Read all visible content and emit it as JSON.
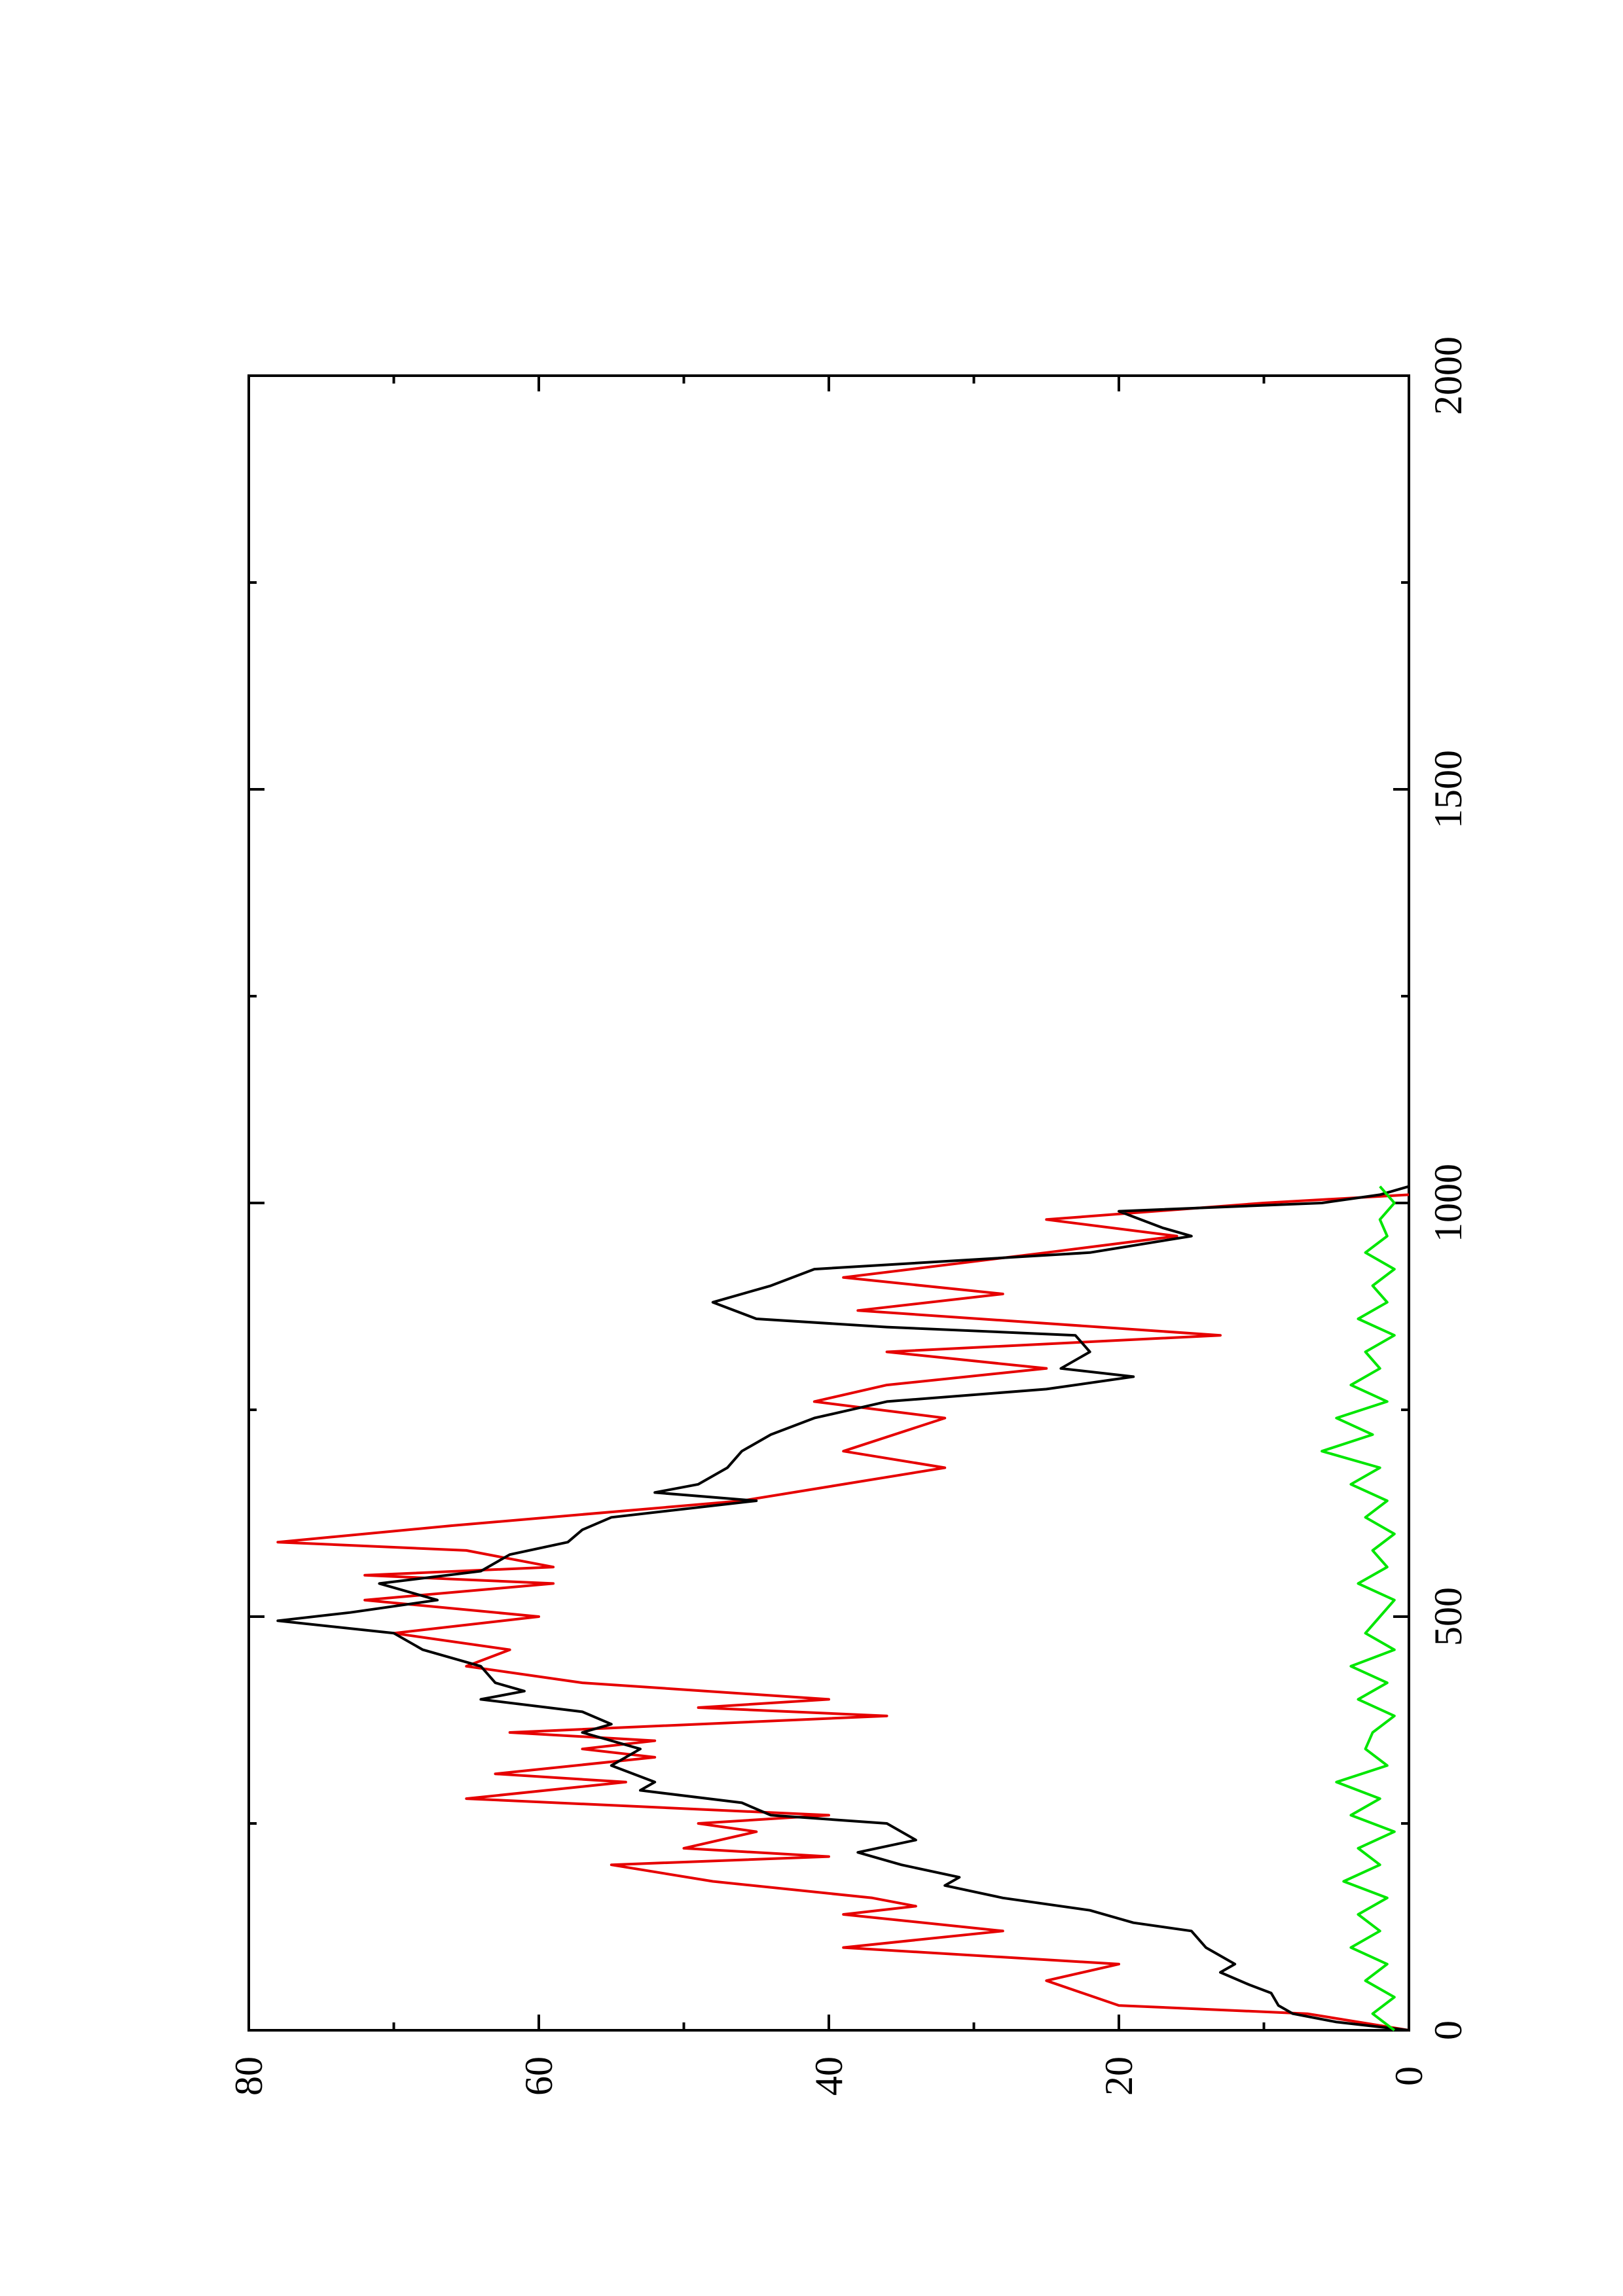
{
  "chart_data": {
    "type": "line",
    "rotation": "rotated 90 degrees counter-clockwise",
    "xlim": [
      0,
      2000
    ],
    "ylim": [
      0,
      80
    ],
    "x_ticks": [
      {
        "value": 0,
        "label": "0"
      },
      {
        "value": 500,
        "label": "500"
      },
      {
        "value": 1000,
        "label": "1000"
      },
      {
        "value": 1500,
        "label": "1500"
      },
      {
        "value": 2000,
        "label": "2000"
      }
    ],
    "x_minor_ticks": [
      250,
      750,
      1250,
      1750
    ],
    "y_ticks": [
      {
        "value": 0,
        "label": "0"
      },
      {
        "value": 20,
        "label": "20"
      },
      {
        "value": 40,
        "label": "40"
      },
      {
        "value": 60,
        "label": "60"
      },
      {
        "value": 80,
        "label": "80"
      }
    ],
    "y_minor_ticks": [
      10,
      30,
      50,
      70
    ],
    "grid": false,
    "series": [
      {
        "color": "#000000",
        "x": [
          0,
          10,
          20,
          30,
          45,
          55,
          70,
          80,
          100,
          120,
          130,
          145,
          160,
          175,
          185,
          200,
          215,
          230,
          250,
          260,
          275,
          290,
          300,
          320,
          340,
          360,
          370,
          385,
          400,
          410,
          420,
          440,
          460,
          480,
          495,
          505,
          520,
          540,
          555,
          575,
          590,
          605,
          620,
          640,
          650,
          660,
          680,
          700,
          720,
          740,
          760,
          775,
          790,
          800,
          820,
          840,
          850,
          860,
          880,
          900,
          920,
          940,
          960,
          970,
          990,
          1000,
          1010,
          1020
        ],
        "y": [
          0,
          5,
          8,
          9,
          9.5,
          11,
          13,
          12,
          14,
          15,
          19,
          22,
          28,
          32,
          31,
          35,
          38,
          34,
          36,
          44,
          46,
          53,
          52,
          55,
          53,
          57,
          55,
          57,
          64,
          61,
          63,
          64,
          68,
          70,
          78,
          73,
          67,
          71,
          64,
          62,
          58,
          57,
          55,
          45,
          52,
          49,
          47,
          46,
          44,
          41,
          36,
          25,
          19,
          24,
          22,
          23,
          36,
          45,
          48,
          44,
          41,
          22,
          15,
          17,
          20,
          6,
          2,
          0
        ]
      },
      {
        "color": "#e60000",
        "x": [
          0,
          20,
          30,
          60,
          80,
          100,
          120,
          140,
          150,
          160,
          180,
          200,
          210,
          220,
          240,
          250,
          260,
          280,
          300,
          310,
          330,
          340,
          350,
          360,
          380,
          390,
          400,
          420,
          440,
          460,
          480,
          500,
          520,
          540,
          550,
          560,
          580,
          590,
          610,
          640,
          680,
          700,
          740,
          760,
          780,
          800,
          820,
          840,
          870,
          890,
          910,
          940,
          960,
          980,
          1000,
          1010
        ],
        "y": [
          0,
          7,
          20,
          25,
          20,
          39,
          28,
          39,
          34,
          37,
          48,
          55,
          40,
          50,
          45,
          49,
          40,
          65,
          54,
          63,
          52,
          57,
          52,
          62,
          36,
          49,
          40,
          57,
          65,
          62,
          70,
          60,
          72,
          59,
          72,
          59,
          65,
          78,
          66,
          46,
          32,
          39,
          32,
          41,
          36,
          25,
          36,
          13,
          38,
          28,
          39,
          25,
          16,
          25,
          10,
          0
        ]
      },
      {
        "color": "#00e600",
        "x": [
          0,
          20,
          40,
          60,
          80,
          100,
          120,
          140,
          160,
          180,
          200,
          220,
          240,
          260,
          280,
          300,
          320,
          340,
          360,
          380,
          400,
          420,
          440,
          460,
          480,
          500,
          520,
          540,
          560,
          580,
          600,
          620,
          640,
          660,
          680,
          700,
          720,
          740,
          760,
          780,
          800,
          820,
          840,
          860,
          880,
          900,
          920,
          940,
          960,
          980,
          1000,
          1020
        ],
        "y": [
          1,
          2.5,
          1,
          3,
          1.5,
          4,
          2,
          3.5,
          1.5,
          4.5,
          2,
          3.5,
          1,
          4,
          2,
          5,
          1.5,
          3,
          2.5,
          1,
          3.5,
          1.5,
          4,
          1,
          3,
          2,
          1,
          3.5,
          1.5,
          2.5,
          1,
          3,
          1.5,
          4,
          2,
          6,
          2.5,
          5,
          1.5,
          4,
          2,
          3,
          1,
          3.5,
          1.5,
          2.5,
          1,
          3,
          1.5,
          2,
          1,
          2
        ]
      }
    ]
  }
}
